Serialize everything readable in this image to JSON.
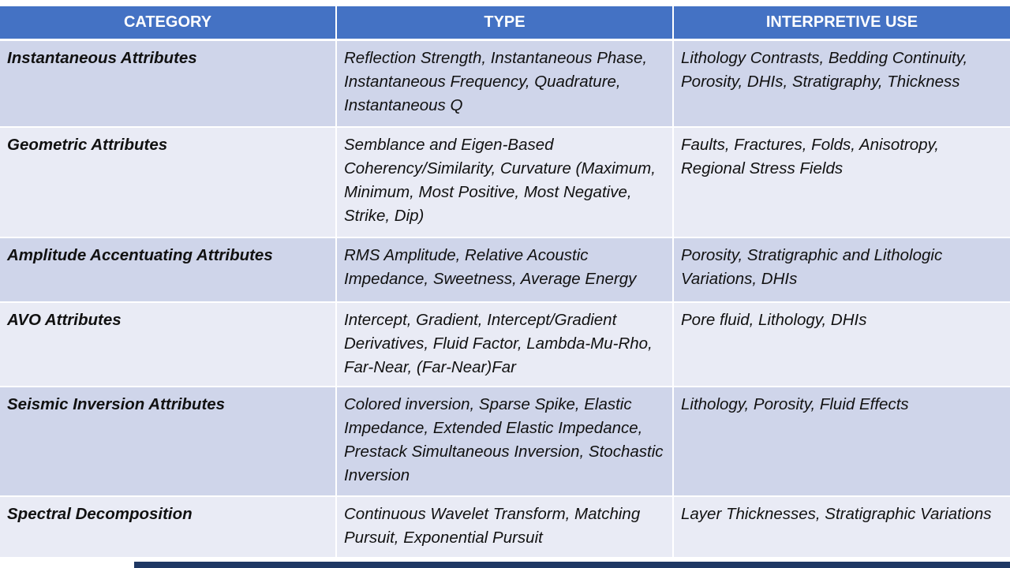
{
  "table": {
    "headers": [
      "CATEGORY",
      "TYPE",
      "INTERPRETIVE USE"
    ],
    "rows": [
      {
        "category": "Instantaneous Attributes",
        "type": "Reflection Strength, Instantaneous Phase, Instantaneous Frequency, Quadrature, Instantaneous Q",
        "use": "Lithology Contrasts, Bedding Continuity, Porosity, DHIs, Stratigraphy, Thickness"
      },
      {
        "category": "Geometric Attributes",
        "type": "Semblance and Eigen-Based Coherency/Similarity, Curvature (Maximum, Minimum, Most Positive, Most Negative, Strike, Dip)",
        "use": "Faults, Fractures, Folds, Anisotropy, Regional Stress Fields"
      },
      {
        "category": "Amplitude Accentuating Attributes",
        "type": "RMS Amplitude, Relative Acoustic Impedance, Sweetness, Average Energy",
        "use": "Porosity, Stratigraphic and Lithologic Variations, DHIs"
      },
      {
        "category": "AVO Attributes",
        "type": "Intercept, Gradient, Intercept/Gradient Derivatives, Fluid Factor, Lambda-Mu-Rho, Far-Near, (Far-Near)Far",
        "use": "Pore fluid, Lithology, DHIs"
      },
      {
        "category": "Seismic Inversion Attributes",
        "type": "Colored inversion, Sparse Spike, Elastic Impedance, Extended Elastic Impedance, Prestack Simultaneous Inversion, Stochastic Inversion",
        "use": "Lithology, Porosity, Fluid Effects"
      },
      {
        "category": "Spectral Decomposition",
        "type": "Continuous Wavelet Transform, Matching Pursuit, Exponential Pursuit",
        "use": "Layer Thicknesses, Stratigraphic Variations"
      }
    ]
  },
  "colors": {
    "header_bg": "#4472c4",
    "row_dark": "#cfd5ea",
    "row_light": "#e9ebf5",
    "accent_bar": "#1f3864"
  }
}
